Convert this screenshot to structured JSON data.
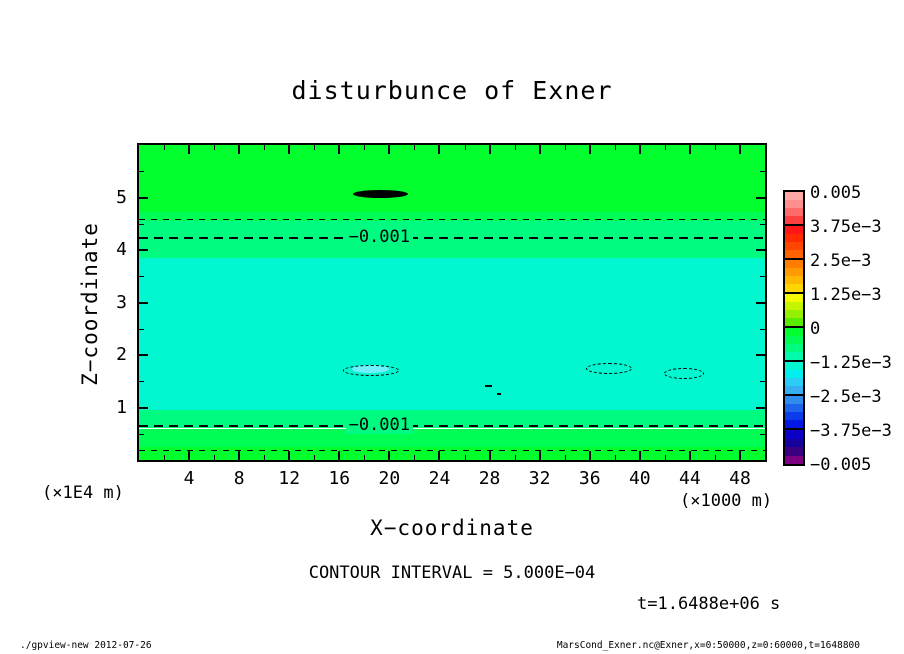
{
  "title": "disturbunce of Exner",
  "chart_data": {
    "type": "filled-contour",
    "title": "disturbunce of Exner",
    "xlabel": "X−coordinate",
    "ylabel": "Z−coordinate",
    "x_units": "(×1000 m)",
    "y_units": "(×1E4 m)",
    "xlim": [
      0,
      50
    ],
    "ylim": [
      0,
      6
    ],
    "x_major_ticks": [
      4,
      8,
      12,
      16,
      20,
      24,
      28,
      32,
      36,
      40,
      44,
      48
    ],
    "x_minor_step": 2,
    "y_major_ticks": [
      1,
      2,
      3,
      4,
      5
    ],
    "y_minor_step": 0.5,
    "grid": false,
    "contour_interval_text": "CONTOUR INTERVAL = 5.000E−04",
    "time_label": "t=1.6488e+06 s",
    "bands": [
      {
        "z_top": 6.0,
        "z_bottom": 4.72,
        "color": "#00ff2d",
        "value_range": "0 to -3.125e-4"
      },
      {
        "z_top": 4.72,
        "z_bottom": 4.55,
        "color": "#00fd55",
        "value_range": "-3.125e-4 to -6.25e-4"
      },
      {
        "z_top": 4.55,
        "z_bottom": 3.84,
        "color": "#00fb81",
        "value_range": "-6.25e-4 to -1.25e-3"
      },
      {
        "z_top": 3.84,
        "z_bottom": 0.96,
        "color": "#00f7cf",
        "value_range": "-1.25e-3 to -1.5625e-3"
      },
      {
        "z_top": 0.96,
        "z_bottom": 0.6,
        "color": "#00fb81",
        "value_range": "-6.25e-4 to -1.25e-3"
      },
      {
        "z_top": 0.6,
        "z_bottom": 0.24,
        "color": "#00fd55",
        "value_range": "-3.125e-4 to -6.25e-4"
      },
      {
        "z_top": 0.24,
        "z_bottom": 0.0,
        "color": "#00ff2d",
        "value_range": "0 to -3.125e-4"
      }
    ],
    "contour_lines": [
      {
        "value": -0.0005,
        "z": 4.59,
        "style": "thin"
      },
      {
        "value": -0.001,
        "z": 4.25,
        "style": "thick",
        "label": "−0.001",
        "label_x": 16.5
      },
      {
        "value": -0.001,
        "z": 0.67,
        "style": "thick",
        "label": "−0.001",
        "label_x": 16.5
      },
      {
        "value": -0.0005,
        "z": 0.19,
        "style": "thin"
      }
    ],
    "zero_contour_blob": {
      "value": 0,
      "style": "solid-thick",
      "x_from": 17.1,
      "x_to": 21.5,
      "z": 5.07
    },
    "contour_fragments": [
      {
        "kind": "patch",
        "x_from": 17.0,
        "x_to": 20.0,
        "z": 1.73,
        "color": "#70f0fa"
      },
      {
        "kind": "ellipse",
        "x_from": 16.3,
        "x_to": 20.6,
        "z": 1.71
      },
      {
        "kind": "ellipse",
        "x_from": 35.7,
        "x_to": 39.2,
        "z": 1.75
      },
      {
        "kind": "ellipse",
        "x_from": 41.9,
        "x_to": 45.0,
        "z": 1.66
      },
      {
        "kind": "speck",
        "x_from": 27.6,
        "x_to": 28.2,
        "z": 1.41
      },
      {
        "kind": "speck",
        "x_from": 28.6,
        "x_to": 28.9,
        "z": 1.26
      }
    ],
    "colorbar": {
      "tick_labels": [
        "0.005",
        "3.75e−3",
        "2.5e−3",
        "1.25e−3",
        "0",
        "−1.25e−3",
        "−2.5e−3",
        "−3.75e−3",
        "−0.005"
      ],
      "cells": [
        [
          "#ffa8a8",
          "#ff8f8f",
          "#ff6b6b",
          "#ff4040"
        ],
        [
          "#ff1616",
          "#ff2a00",
          "#ff4600",
          "#ff6200"
        ],
        [
          "#ff7e00",
          "#ff9a00",
          "#ffb800",
          "#ffd600"
        ],
        [
          "#f4f800",
          "#c4f400",
          "#93f000",
          "#59ec00"
        ],
        [
          "#00ff2d",
          "#00fd55",
          "#00fb81",
          "#00f9ab"
        ],
        [
          "#00f7cf",
          "#00eeee",
          "#2bcdf6",
          "#38aef2"
        ],
        [
          "#2f8cef",
          "#1d64ec",
          "#0c3ce9",
          "#0318e4"
        ],
        [
          "#0a00c8",
          "#16009e",
          "#3b0082",
          "#7d0083"
        ]
      ]
    }
  },
  "footer": {
    "left": "./gpview-new  2012-07-26",
    "right": "MarsCond_Exner.nc@Exner,x=0:50000,z=0:60000,t=1648800"
  }
}
